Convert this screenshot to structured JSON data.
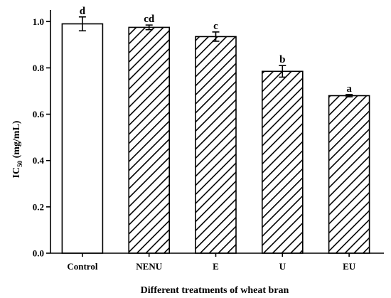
{
  "chart_data": {
    "type": "bar",
    "categories": [
      "Control",
      "NENU",
      "E",
      "U",
      "EU"
    ],
    "values": [
      0.99,
      0.975,
      0.935,
      0.785,
      0.68
    ],
    "errors": [
      0.03,
      0.01,
      0.02,
      0.025,
      0.005
    ],
    "significance": [
      "d",
      "cd",
      "c",
      "b",
      "a"
    ],
    "patterns": [
      "none",
      "hatch",
      "hatch",
      "hatch",
      "hatch"
    ],
    "xlabel": "Different treatments of wheat bran",
    "ylabel_main": "IC",
    "ylabel_sub": "50",
    "ylabel_unit": " (mg/mL)",
    "ylim": [
      0,
      1.05
    ],
    "yticks": [
      0.0,
      0.2,
      0.4,
      0.6,
      0.8,
      1.0
    ],
    "ytick_labels": [
      "0.0",
      "0.2",
      "0.4",
      "0.6",
      "0.8",
      "1.0"
    ],
    "grid": false,
    "colors": {
      "bar_edge": "#000000",
      "hatch": "#000000",
      "bar_fill": "#ffffff"
    }
  }
}
